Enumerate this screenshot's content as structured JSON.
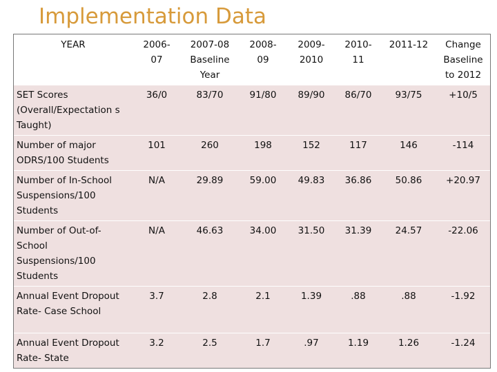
{
  "title": "Implementation Data",
  "table": {
    "headers": [
      "YEAR",
      "2006-\n07",
      "2007-08\nBaseline\nYear",
      "2008-\n09",
      "2009-\n2010",
      "2010-\n11",
      "2011-12",
      "Change\nBaseline\nto 2012"
    ],
    "rows": [
      {
        "label": "SET Scores (Overall/Expectation s Taught)",
        "cells": [
          "36/0",
          "83/70",
          "91/80",
          "89/90",
          "86/70",
          "93/75",
          "+10/5"
        ]
      },
      {
        "label": "Number of major ODRS/100 Students",
        "cells": [
          "101",
          "260",
          "198",
          "152",
          "117",
          "146",
          "-114"
        ]
      },
      {
        "label": "Number of In-School Suspensions/100 Students",
        "cells": [
          "N/A",
          "29.89",
          "59.00",
          "49.83",
          "36.86",
          "50.86",
          "+20.97"
        ]
      },
      {
        "label": "Number of Out-of-School Suspensions/100 Students",
        "cells": [
          "N/A",
          "46.63",
          "34.00",
          "31.50",
          "31.39",
          "24.57",
          "-22.06"
        ]
      },
      {
        "label": "Annual Event Dropout Rate- Case School",
        "cells": [
          "3.7",
          "2.8",
          "2.1",
          "1.39",
          ".88",
          ".88",
          "-1.92"
        ]
      },
      {
        "label": "Annual Event Dropout Rate- State",
        "cells": [
          "3.2",
          "2.5",
          "1.7",
          ".97",
          "1.19",
          "1.26",
          "-1.24"
        ]
      }
    ]
  }
}
